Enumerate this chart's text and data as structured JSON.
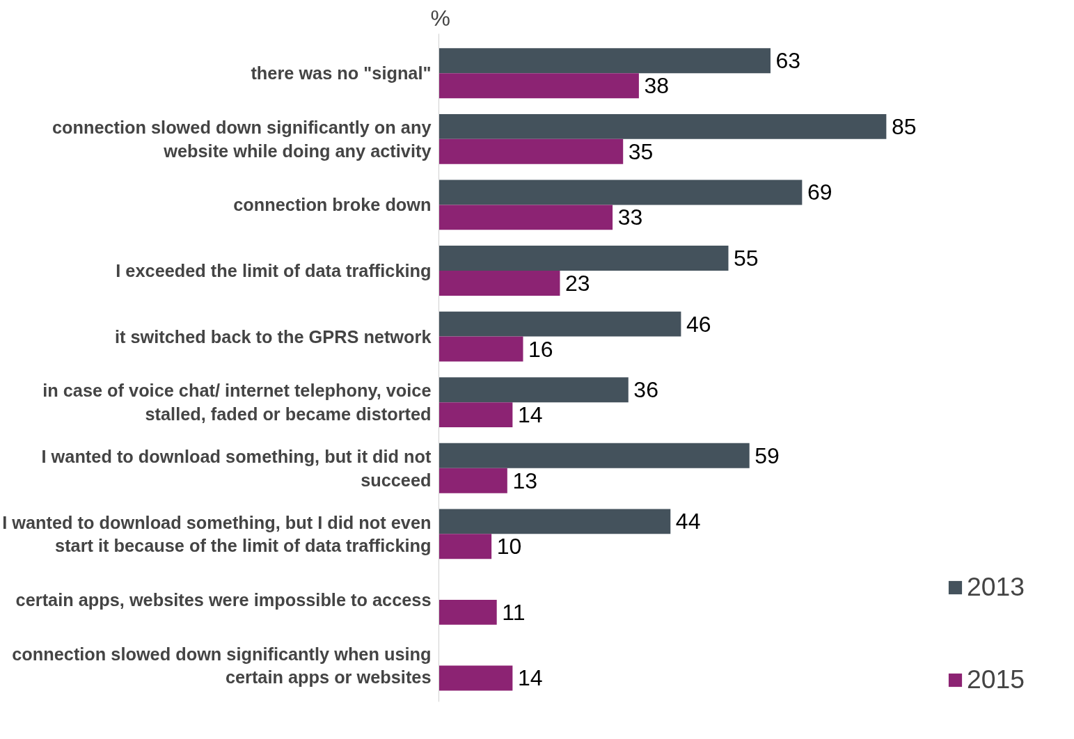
{
  "chart_data": {
    "type": "bar",
    "orientation": "horizontal",
    "xlabel": "%",
    "categories": [
      "there was no \"signal\"",
      "connection slowed down significantly on any website while doing any activity",
      "connection broke down",
      "I exceeded the limit of data trafficking",
      "it switched back to the GPRS network",
      "in case of voice chat/ internet telephony, voice stalled, faded or became distorted",
      "I wanted to download something, but it did not succeed",
      "I wanted to download something, but I did not even start it because of the limit of data trafficking",
      "certain apps, websites were impossible to access",
      "connection slowed down significantly when using certain apps or websites"
    ],
    "series": [
      {
        "name": "2013",
        "color": "#44525c",
        "values": [
          63,
          85,
          69,
          55,
          46,
          36,
          59,
          44,
          null,
          null
        ]
      },
      {
        "name": "2015",
        "color": "#8c2373",
        "values": [
          38,
          35,
          33,
          23,
          16,
          14,
          13,
          10,
          11,
          14
        ]
      }
    ],
    "data_labels": true,
    "legend": "right",
    "grid": false,
    "tick_labels": "y"
  }
}
